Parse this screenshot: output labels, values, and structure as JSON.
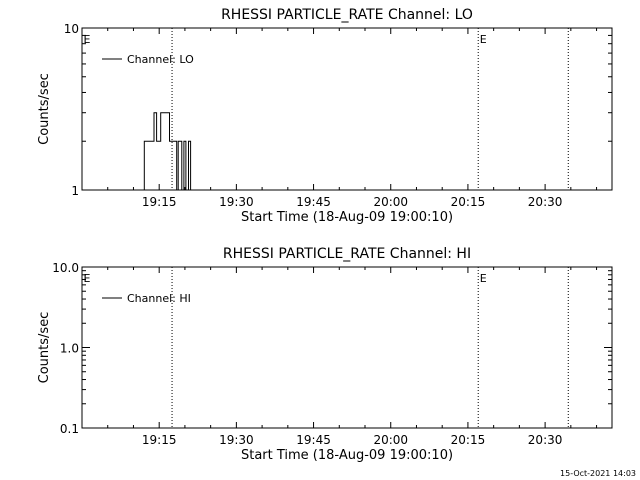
{
  "footer_timestamp": "15-Oct-2021 14:03",
  "chart_data": [
    {
      "type": "line",
      "title": "RHESSI PARTICLE_RATE Channel: LO",
      "xlabel": "Start Time (18-Aug-09 19:00:10)",
      "ylabel": "Counts/sec",
      "y_scale": "log",
      "ylim": [
        1,
        10
      ],
      "y_tick_labels": [
        "1",
        "10"
      ],
      "y_ticks": [
        1,
        10
      ],
      "xlim_minutes": [
        0,
        103
      ],
      "x_ticks_minutes": [
        15,
        30,
        45,
        60,
        75,
        90
      ],
      "x_tick_labels": [
        "19:15",
        "19:30",
        "19:45",
        "20:00",
        "20:15",
        "20:30"
      ],
      "event_lines_minutes": [
        17.5,
        77.0,
        94.5
      ],
      "event_markers": [
        {
          "label": "E",
          "x_minutes": 0.3
        },
        {
          "label": "E",
          "x_minutes": 77.3
        }
      ],
      "legend_position": "top-left",
      "series": [
        {
          "name": "Channel: LO",
          "color": "#000000",
          "step_points": [
            [
              12.1,
              1
            ],
            [
              12.1,
              2
            ],
            [
              14.0,
              2
            ],
            [
              14.0,
              3
            ],
            [
              14.5,
              3
            ],
            [
              14.5,
              2
            ],
            [
              15.3,
              2
            ],
            [
              15.3,
              3
            ],
            [
              17.0,
              3
            ],
            [
              17.0,
              2
            ],
            [
              18.4,
              2
            ],
            [
              18.4,
              1
            ],
            [
              18.7,
              1
            ],
            [
              18.7,
              2
            ],
            [
              19.4,
              2
            ],
            [
              19.4,
              1
            ],
            [
              19.8,
              1
            ],
            [
              19.8,
              2
            ],
            [
              20.2,
              2
            ],
            [
              20.2,
              1
            ],
            [
              20.7,
              1
            ],
            [
              20.7,
              2
            ],
            [
              21.1,
              2
            ],
            [
              21.1,
              1
            ]
          ]
        }
      ]
    },
    {
      "type": "line",
      "title": "RHESSI PARTICLE_RATE Channel: HI",
      "xlabel": "Start Time (18-Aug-09 19:00:10)",
      "ylabel": "Counts/sec",
      "y_scale": "log",
      "ylim": [
        0.1,
        10
      ],
      "y_tick_labels": [
        "0.1",
        "1.0",
        "10.0"
      ],
      "y_ticks": [
        0.1,
        1,
        10
      ],
      "xlim_minutes": [
        0,
        103
      ],
      "x_ticks_minutes": [
        15,
        30,
        45,
        60,
        75,
        90
      ],
      "x_tick_labels": [
        "19:15",
        "19:30",
        "19:45",
        "20:00",
        "20:15",
        "20:30"
      ],
      "event_lines_minutes": [
        17.5,
        77.0,
        94.5
      ],
      "event_markers": [
        {
          "label": "E",
          "x_minutes": 0.3
        },
        {
          "label": "E",
          "x_minutes": 77.3
        }
      ],
      "legend_position": "top-left",
      "series": [
        {
          "name": "Channel: HI",
          "color": "#000000",
          "step_points": []
        }
      ]
    }
  ]
}
